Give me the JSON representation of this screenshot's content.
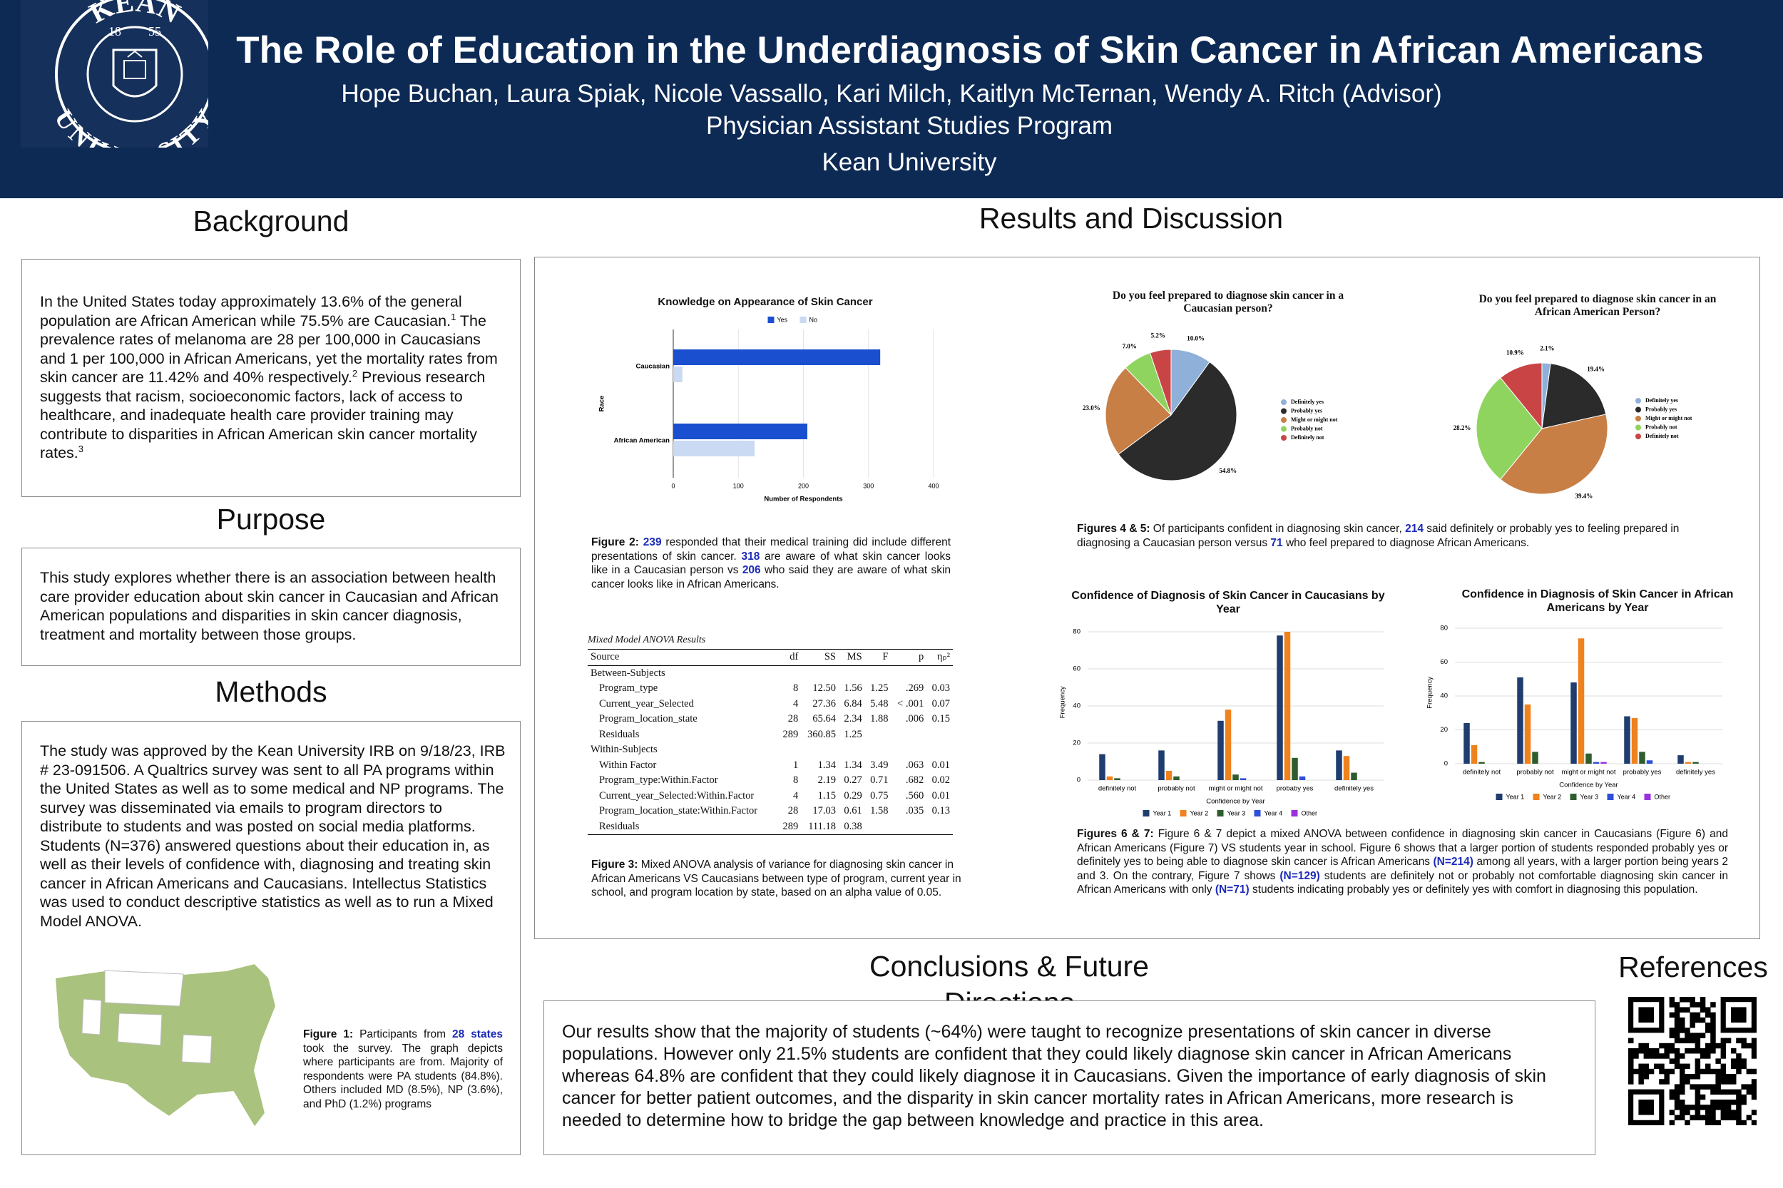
{
  "header": {
    "title": "The Role of Education in the Underdiagnosis of Skin Cancer in African Americans",
    "authors": "Hope Buchan, Laura Spiak, Nicole Vassallo, Kari Milch, Kaitlyn McTernan, Wendy A. Ritch (Advisor)",
    "program": "Physician Assistant Studies Program",
    "university": "Kean University",
    "logo": {
      "top": "KEAN",
      "bottom": "UNIVERSITY",
      "year_left": "18",
      "year_right": "55"
    }
  },
  "background": {
    "heading": "Background",
    "text": [
      "In the United States today approximately 13.6% of the general population are African American while 75.5% are Caucasian.",
      "1",
      " The prevalence rates of melanoma are 28 per 100,000 in Caucasians and 1 per 100,000 in African Americans, yet the mortality rates from skin cancer are 11.42% and 40% respectively.",
      "2",
      " Previous research suggests that racism, socioeconomic factors, lack of access to healthcare, and inadequate health care provider training may contribute to disparities in African American skin cancer mortality rates.",
      "3"
    ]
  },
  "purpose": {
    "heading": "Purpose",
    "text": "This study explores whether there is an association between health care provider education about skin cancer in Caucasian and African American populations and disparities in skin cancer diagnosis, treatment and mortality between those groups."
  },
  "methods": {
    "heading": "Methods",
    "text": "The study was approved by the Kean University IRB on 9/18/23, IRB # 23-091506. A Qualtrics survey was sent to all PA programs within the United States as well as to some medical and NP programs. The survey was disseminated via emails to program directors to distribute to students and was posted on social media platforms. Students (N=376) answered questions about their education in, as well as their levels of confidence with, diagnosing and treating skin cancer in African Americans and Caucasians. Intellectus Statistics was used to conduct descriptive statistics as well as to run a Mixed Model ANOVA.",
    "figure1_caption": [
      "Figure 1:",
      " Participants from ",
      "28 states",
      " took the survey. The graph depicts where participants are from. Majority of respondents were PA students (84.8%). Others included MD (8.5%), NP (3.6%), and PhD (1.2%) programs"
    ]
  },
  "results": {
    "heading": "Results and Discussion",
    "figure2_caption": [
      "Figure 2:",
      " 239",
      " responded that their medical training did include different presentations of skin cancer. ",
      "318",
      "  are aware of what skin cancer looks like in a Caucasian person vs ",
      "206",
      " who said they are aware of what skin cancer looks like in African Americans."
    ],
    "table": {
      "title": "Mixed Model ANOVA Results",
      "columns": [
        "Source",
        "df",
        "SS",
        "MS",
        "F",
        "p",
        "ηₚ²"
      ],
      "rows": [
        [
          "Between-Subjects"
        ],
        [
          "Program_type",
          "8",
          "12.50",
          "1.56",
          "1.25",
          ".269",
          "0.03"
        ],
        [
          "Current_year_Selected",
          "4",
          "27.36",
          "6.84",
          "5.48",
          "< .001",
          "0.07"
        ],
        [
          "Program_location_state",
          "28",
          "65.64",
          "2.34",
          "1.88",
          ".006",
          "0.15"
        ],
        [
          "Residuals",
          "289",
          "360.85",
          "1.25"
        ],
        [
          "Within-Subjects"
        ],
        [
          "Within Factor",
          "1",
          "1.34",
          "1.34",
          "3.49",
          ".063",
          "0.01"
        ],
        [
          "Program_type:Within.Factor",
          "8",
          "2.19",
          "0.27",
          "0.71",
          ".682",
          "0.02"
        ],
        [
          "Current_year_Selected:Within.Factor",
          "4",
          "1.15",
          "0.29",
          "0.75",
          ".560",
          "0.01"
        ],
        [
          "Program_location_state:Within.Factor",
          "28",
          "17.03",
          "0.61",
          "1.58",
          ".035",
          "0.13"
        ],
        [
          "Residuals",
          "289",
          "111.18",
          "0.38"
        ]
      ]
    },
    "figure3_caption": [
      "Figure 3:",
      " Mixed ANOVA analysis of variance for diagnosing skin cancer in African Americans VS Caucasians between type of program, current year in school, and program location by state, based on an alpha value of 0.05."
    ],
    "figure45_caption": [
      "Figures 4 & 5:",
      " Of participants confident in diagnosing skin cancer, ",
      "214",
      " said definitely or probably yes to feeling prepared in diagnosing a Caucasian person versus ",
      "71",
      " who feel prepared to diagnose African Americans."
    ],
    "figure67_caption": [
      "Figures  6 & 7:",
      " Figure 6 & 7 depict a mixed ANOVA between confidence in diagnosing skin cancer in Caucasians (Figure 6) and African Americans (Figure 7) VS students year in school. Figure 6  shows that a larger portion of students responded probably yes or definitely yes to being able to diagnose skin cancer is African Americans ",
      "(N=214)",
      " among all years, with a larger portion being years 2 and 3. On the contrary, Figure 7 shows ",
      "(N=129)",
      " students are definitely not or probably not comfortable diagnosing skin cancer in African Americans with only ",
      "(N=71)",
      " students indicating probably yes or definitely yes with comfort in diagnosing this population."
    ]
  },
  "conclusions": {
    "heading": "Conclusions & Future Directions",
    "text": "Our results show that the majority of students (~64%) were taught to recognize presentations of skin cancer in diverse populations. However only 21.5% students are confident that they could likely diagnose skin cancer in African Americans whereas 64.8% are confident that they could likely diagnose it in Caucasians. Given the importance of early diagnosis of skin cancer for better patient outcomes, and the disparity in skin cancer mortality rates in African Americans, more research is needed to determine how to bridge the gap between knowledge and practice in this area."
  },
  "references": {
    "heading": "References"
  },
  "chart_data": [
    {
      "type": "hbar",
      "title": "Knowledge on Appearance of Skin Cancer",
      "categories": [
        "Caucasian",
        "African American"
      ],
      "series": [
        {
          "name": "Yes",
          "color": "#1a4fd0",
          "values": [
            318,
            206
          ]
        },
        {
          "name": "No",
          "color": "#c9daf2",
          "values": [
            14,
            125
          ]
        }
      ],
      "xlim": [
        0,
        400
      ],
      "xticks": [
        0,
        100,
        200,
        300,
        400
      ],
      "xlabel": "Number of Respondents",
      "ylabel": "Race",
      "grid": true
    },
    {
      "type": "pie",
      "title": "Do you feel prepared to diagnose skin cancer in a Caucasian person?",
      "categories": [
        "Definitely yes",
        "Probably yes",
        "Might or might not",
        "Probably not",
        "Definitely not"
      ],
      "values": [
        10.0,
        54.8,
        23.0,
        7.0,
        5.2
      ],
      "value_labels": [
        "10.0%",
        "54.8%",
        "23.0%",
        "7.0%",
        "5.2%"
      ],
      "colors": [
        "#8fb0d8",
        "#2b2b2b",
        "#c87f45",
        "#8fd45f",
        "#c94545"
      ]
    },
    {
      "type": "pie",
      "title": "Do you feel prepared to diagnose skin cancer in an African American Person?",
      "categories": [
        "Definitely yes",
        "Probably yes",
        "Might or might not",
        "Probably not",
        "Definitely not"
      ],
      "values": [
        2.1,
        19.4,
        39.4,
        28.2,
        10.9
      ],
      "value_labels": [
        "2.1%",
        "19.4%",
        "39.4%",
        "28.2%",
        "10.9%"
      ],
      "colors": [
        "#8fb0d8",
        "#2b2b2b",
        "#c87f45",
        "#8fd45f",
        "#c94545"
      ]
    },
    {
      "type": "groupbar",
      "title": "Confidence of Diagnosis of Skin Cancer in Caucasians by Year",
      "categories": [
        "definitely not",
        "probably not",
        "might or might not",
        "probaby yes",
        "definitely yes"
      ],
      "series": [
        {
          "name": "Year 1",
          "color": "#1f3d6e",
          "values": [
            14,
            16,
            32,
            78,
            16
          ]
        },
        {
          "name": "Year 2",
          "color": "#f0821e",
          "values": [
            2,
            5,
            38,
            80,
            13
          ]
        },
        {
          "name": "Year 3",
          "color": "#2e5e2e",
          "values": [
            1,
            2,
            3,
            12,
            4
          ]
        },
        {
          "name": "Year 4",
          "color": "#2f4fd8",
          "values": [
            0,
            0,
            1,
            2,
            0
          ]
        },
        {
          "name": "Other",
          "color": "#9b30e0",
          "values": [
            0,
            0,
            0,
            0,
            0
          ]
        }
      ],
      "ylim": [
        0,
        84
      ],
      "yticks": [
        0,
        20,
        40,
        60,
        80
      ],
      "xlabel": "Confidence by Year",
      "ylabel": "Frequency",
      "grid": true
    },
    {
      "type": "groupbar",
      "title": "Confidence in Diagnosis of Skin Cancer in African Americans by Year",
      "categories": [
        "definitely not",
        "probably not",
        "might or might not",
        "probably yes",
        "definitely yes"
      ],
      "series": [
        {
          "name": "Year 1",
          "color": "#1f3d6e",
          "values": [
            24,
            51,
            48,
            28,
            5
          ]
        },
        {
          "name": "Year 2",
          "color": "#f0821e",
          "values": [
            11,
            35,
            74,
            27,
            1
          ]
        },
        {
          "name": "Year 3",
          "color": "#2e5e2e",
          "values": [
            1,
            7,
            6,
            7,
            1
          ]
        },
        {
          "name": "Year 4",
          "color": "#2f4fd8",
          "values": [
            0,
            0,
            1,
            2,
            0
          ]
        },
        {
          "name": "Other",
          "color": "#9b30e0",
          "values": [
            0,
            0,
            1,
            0,
            0
          ]
        }
      ],
      "ylim": [
        0,
        84
      ],
      "yticks": [
        0,
        20,
        40,
        60,
        80
      ],
      "xlabel": "Confidence by Year",
      "ylabel": "Frequency",
      "grid": true
    }
  ]
}
